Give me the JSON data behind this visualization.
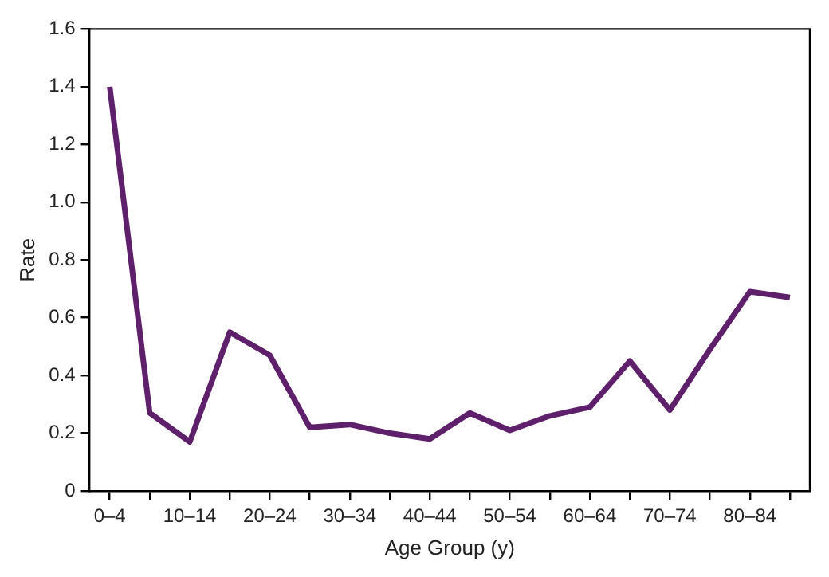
{
  "chart_data": {
    "type": "line",
    "xlabel": "Age Group (y)",
    "ylabel": "Rate",
    "categories": [
      "0–4",
      null,
      "10–14",
      null,
      "20–24",
      null,
      "30–34",
      null,
      "40–44",
      null,
      "50–54",
      null,
      "60–64",
      null,
      "70–74",
      null,
      "80–84",
      null
    ],
    "series": [
      {
        "color": "#5e1f6b",
        "values": [
          1.4,
          0.27,
          0.17,
          0.55,
          0.47,
          0.22,
          0.23,
          0.2,
          0.18,
          0.27,
          0.21,
          0.26,
          0.29,
          0.45,
          0.28,
          0.49,
          0.69,
          0.67
        ]
      }
    ],
    "ylim": [
      0,
      1.6
    ],
    "yticks": [
      0,
      0.2,
      0.4,
      0.6,
      0.8,
      {
        "value": 1,
        "label": "1.0"
      },
      1.2,
      1.4,
      1.6
    ],
    "grid": false,
    "legend": false,
    "marker": "none",
    "line_style": "solid"
  }
}
